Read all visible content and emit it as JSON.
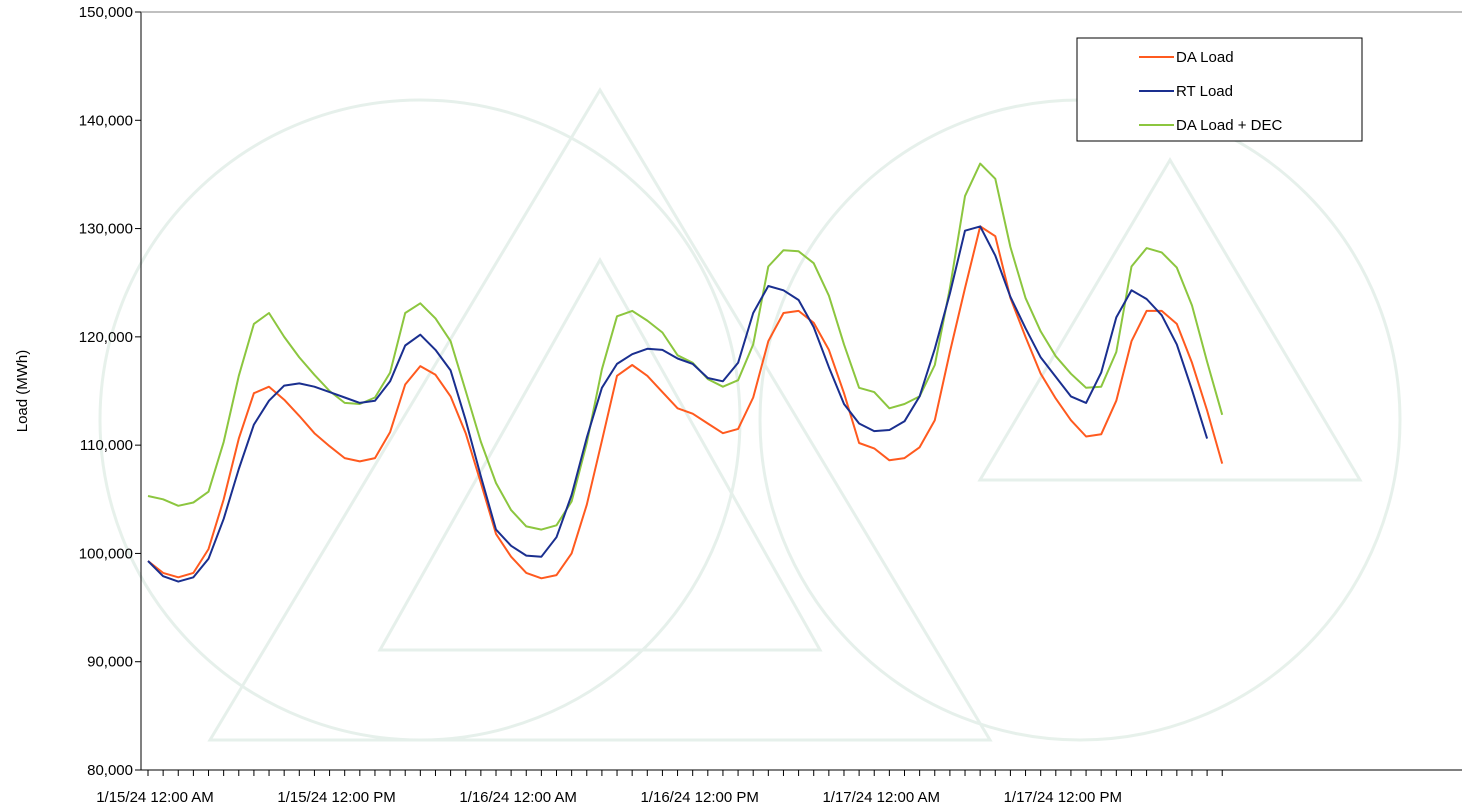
{
  "chart_data": {
    "type": "line",
    "title": "",
    "xlabel": "",
    "ylabel": "Load (MWh)",
    "ylim": [
      80000,
      150000
    ],
    "yticks": [
      80000,
      90000,
      100000,
      110000,
      120000,
      130000,
      140000,
      150000
    ],
    "ytick_labels": [
      "80,000",
      "90,000",
      "100,000",
      "110,000",
      "120,000",
      "130,000",
      "140,000",
      "150,000"
    ],
    "x_interval_hours": 1,
    "x_start": "1/15/24 12:00 AM",
    "xtick_labels": [
      {
        "index": 0,
        "label": "1/15/24 12:00 AM"
      },
      {
        "index": 12,
        "label": "1/15/24 12:00 PM"
      },
      {
        "index": 24,
        "label": "1/16/24 12:00 AM"
      },
      {
        "index": 36,
        "label": "1/16/24 12:00 PM"
      },
      {
        "index": 48,
        "label": "1/17/24 12:00 AM"
      },
      {
        "index": 60,
        "label": "1/17/24 12:00 PM"
      }
    ],
    "grid": false,
    "legend_position": "top-right",
    "series": [
      {
        "name": "DA Load",
        "color": "#ff5a1f",
        "values": [
          99300,
          98200,
          97800,
          98200,
          100400,
          105000,
          110600,
          114800,
          115400,
          114200,
          112700,
          111100,
          109900,
          108800,
          108500,
          108800,
          111200,
          115600,
          117300,
          116500,
          114500,
          111100,
          106500,
          101800,
          99700,
          98200,
          97700,
          98000,
          100000,
          104500,
          110400,
          116400,
          117400,
          116400,
          114900,
          113400,
          112900,
          112000,
          111100,
          111500,
          114400,
          119600,
          122200,
          122400,
          121300,
          118800,
          114800,
          110200,
          109700,
          108600,
          108800,
          109800,
          112300,
          118600,
          124500,
          130200,
          129300,
          123600,
          120000,
          116600,
          114300,
          112300,
          110800,
          111000,
          114100,
          119600,
          122400,
          122400,
          121200,
          117600,
          113200,
          108300
        ]
      },
      {
        "name": "RT Load",
        "color": "#1a2f8f",
        "values": [
          99300,
          97900,
          97400,
          97800,
          99500,
          103200,
          107800,
          111900,
          114100,
          115500,
          115700,
          115400,
          114900,
          114400,
          113900,
          114100,
          115900,
          119200,
          120200,
          118800,
          116900,
          112300,
          107100,
          102200,
          100700,
          99800,
          99700,
          101500,
          105400,
          110700,
          115300,
          117500,
          118400,
          118900,
          118800,
          118000,
          117500,
          116200,
          115900,
          117600,
          122200,
          124700,
          124300,
          123400,
          120900,
          117200,
          113800,
          112000,
          111300,
          111400,
          112200,
          114500,
          118900,
          124000,
          129800,
          130200,
          127500,
          123700,
          120800,
          118100,
          116300,
          114500,
          113900,
          116700,
          121800,
          124300,
          123500,
          122000,
          119300,
          115100,
          110600
        ]
      },
      {
        "name": "DA Load + DEC",
        "color": "#8cc63f",
        "values": [
          105300,
          105000,
          104400,
          104700,
          105700,
          110300,
          116400,
          121200,
          122200,
          120000,
          118100,
          116500,
          115000,
          113900,
          113800,
          114400,
          116700,
          122200,
          123100,
          121700,
          119600,
          115000,
          110300,
          106500,
          104000,
          102500,
          102200,
          102600,
          104800,
          110200,
          117000,
          121900,
          122400,
          121500,
          120400,
          118300,
          117600,
          116100,
          115400,
          116000,
          119300,
          126500,
          128000,
          127900,
          126800,
          123800,
          119300,
          115300,
          114900,
          113400,
          113800,
          114500,
          117400,
          124500,
          133000,
          136000,
          134600,
          128300,
          123600,
          120500,
          118200,
          116600,
          115300,
          115400,
          118600,
          126500,
          128200,
          127800,
          126400,
          122900,
          117700,
          112800
        ]
      }
    ]
  }
}
